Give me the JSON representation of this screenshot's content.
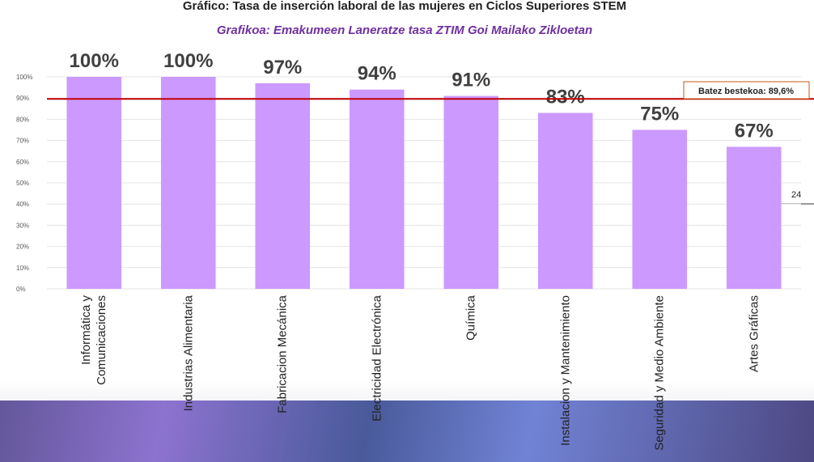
{
  "page_number": "24",
  "chart_data": {
    "type": "bar",
    "title": "Gráfico: Tasa de inserción laboral de las mujeres en Ciclos Superiores STEM",
    "subtitle": "Grafikoa: Emakumeen Laneratze tasa ZTIM Goi Mailako Zikloetan",
    "categories": [
      "Informática y Comunicaciones",
      "Industrias Alimentaria",
      "Fabricacion Mecánica",
      "Electricidad Electrónica",
      "Química",
      "Instalacion y Mantenimiento",
      "Seguridad y Medio Ambiente",
      "Artes Gráficas"
    ],
    "values": [
      100,
      100,
      97,
      94,
      91,
      83,
      75,
      67
    ],
    "value_labels": [
      "100%",
      "100%",
      "97%",
      "94%",
      "91%",
      "83%",
      "75%",
      "67%"
    ],
    "color": "#cc99ff",
    "ylim": [
      0,
      100
    ],
    "yticks": [
      {
        "value": 0,
        "label": "0%"
      },
      {
        "value": 10,
        "label": "10%"
      },
      {
        "value": 20,
        "label": "20%"
      },
      {
        "value": 30,
        "label": "30%"
      },
      {
        "value": 40,
        "label": "40%"
      },
      {
        "value": 50,
        "label": "50%"
      },
      {
        "value": 60,
        "label": "60%"
      },
      {
        "value": 70,
        "label": "70%"
      },
      {
        "value": 80,
        "label": "80%"
      },
      {
        "value": 90,
        "label": "90%"
      },
      {
        "value": 100,
        "label": "100%"
      }
    ],
    "grid": true,
    "reference_line": {
      "value": 89.6,
      "label": "Batez bestekoa: 89,6%",
      "color": "#c00000"
    }
  }
}
